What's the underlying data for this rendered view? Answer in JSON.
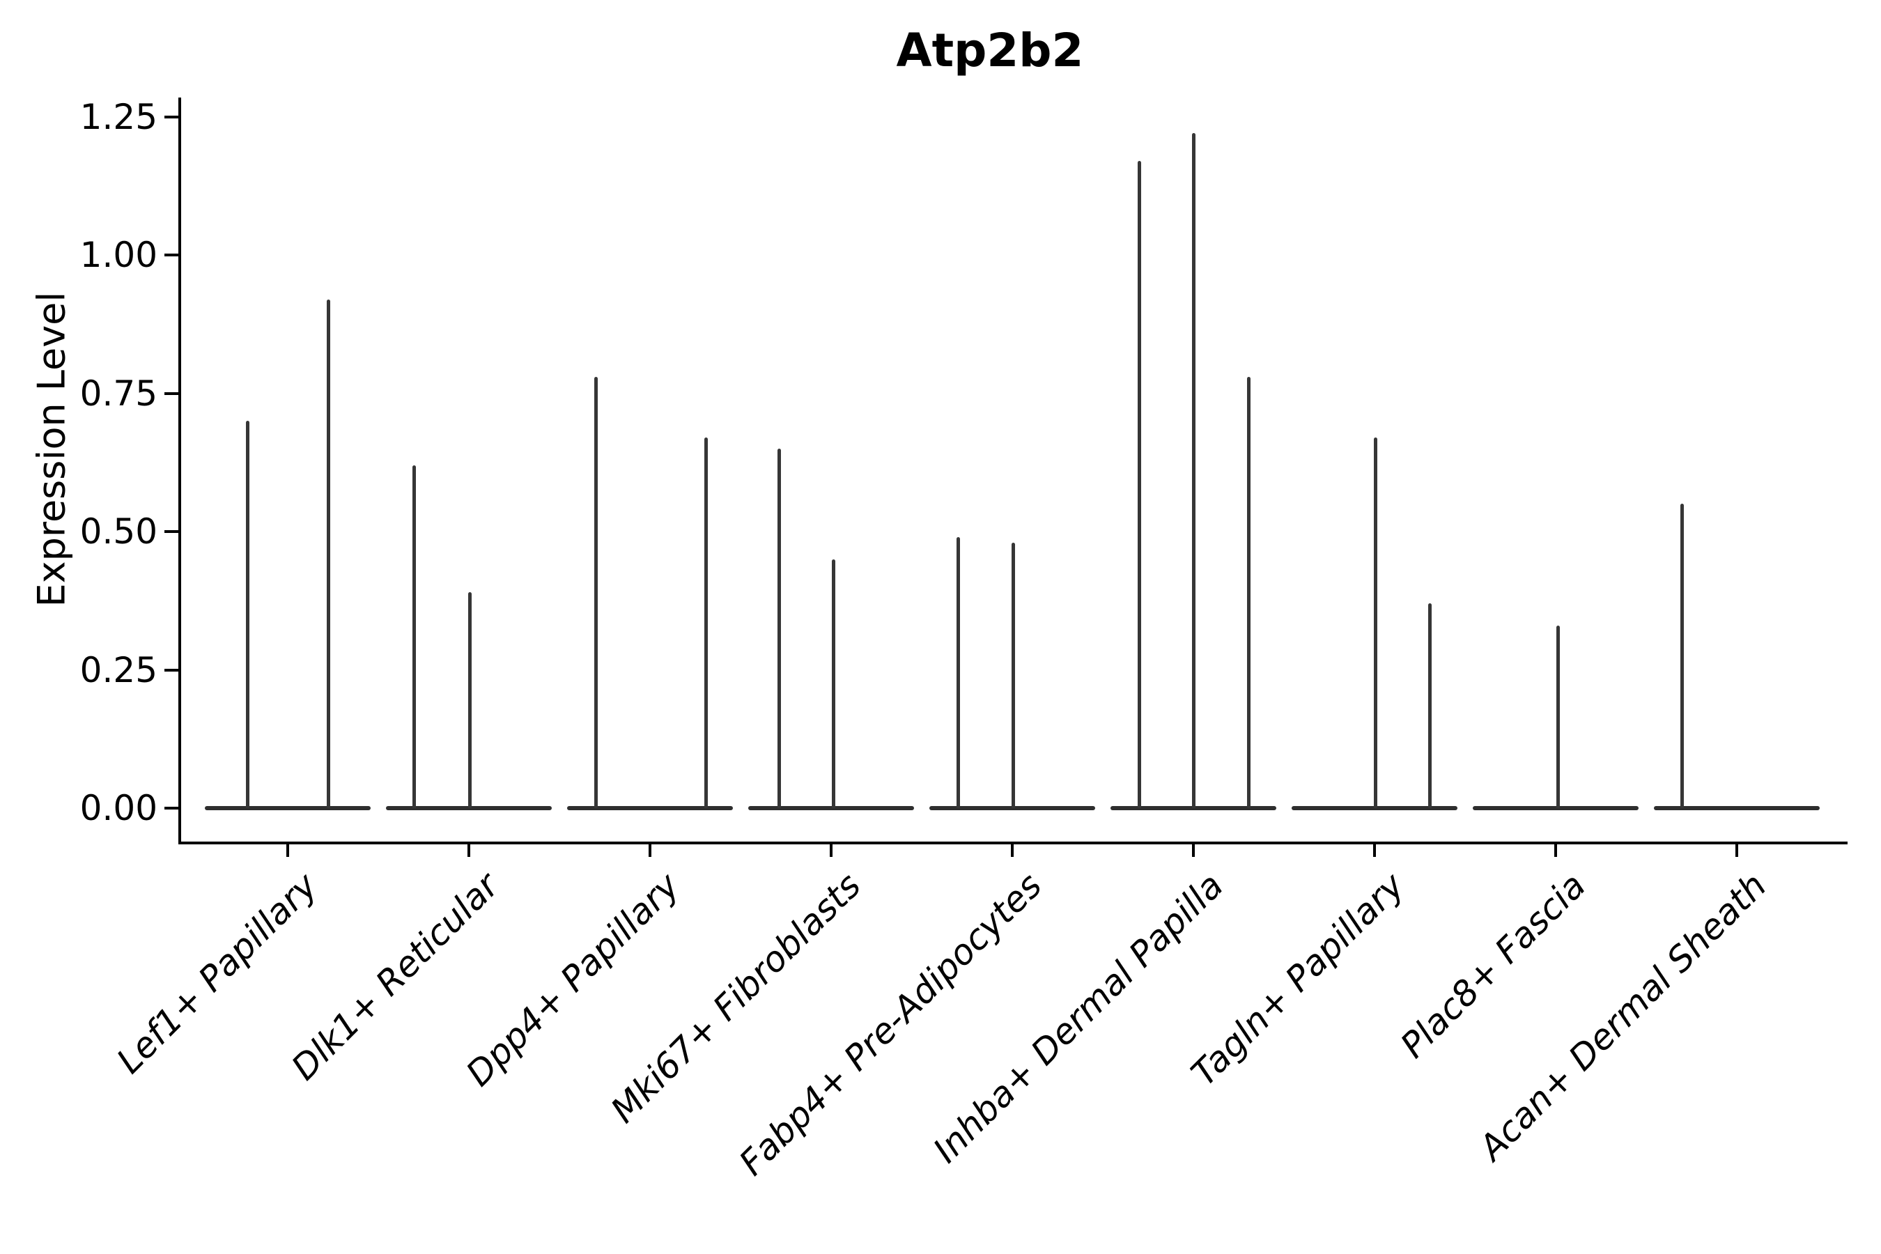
{
  "title": "Atp2b2",
  "y_axis": {
    "label": "Expression Level",
    "tick_labels": [
      "0.00",
      "0.25",
      "0.50",
      "0.75",
      "1.00",
      "1.25"
    ]
  },
  "chart_data": {
    "type": "violin",
    "title": "Atp2b2",
    "xlabel": "",
    "ylabel": "Expression Level",
    "yticks": [
      0.0,
      0.25,
      0.5,
      0.75,
      1.0,
      1.25
    ],
    "ylim": [
      -0.065,
      1.29
    ],
    "grid": false,
    "legend": "none",
    "categories": [
      "Lef1+ Papillary",
      "Dlk1+ Reticular",
      "Dpp4+ Papillary",
      "Mki67+ Fibroblasts",
      "Fabp4+ Pre-Adipocytes",
      "Inhba+ Dermal Papilla",
      "Tagln+ Papillary",
      "Plac8+ Fascia",
      "Acan+ Dermal Sheath"
    ],
    "groups": [
      {
        "category": "Lef1+ Papillary",
        "violins": [
          {
            "dx": -58,
            "max": 0.7
          },
          {
            "dx": 58,
            "max": 0.92
          }
        ]
      },
      {
        "category": "Dlk1+ Reticular",
        "violins": [
          {
            "dx": -79,
            "max": 0.62
          },
          {
            "dx": 1,
            "max": 0.39
          }
        ]
      },
      {
        "category": "Dpp4+ Papillary",
        "violins": [
          {
            "dx": -78,
            "max": 0.78
          },
          {
            "dx": 80,
            "max": 0.67
          }
        ]
      },
      {
        "category": "Mki67+ Fibroblasts",
        "violins": [
          {
            "dx": -75,
            "max": 0.65
          },
          {
            "dx": 3,
            "max": 0.45
          }
        ]
      },
      {
        "category": "Fabp4+ Pre-Adipocytes",
        "violins": [
          {
            "dx": -78,
            "max": 0.49
          },
          {
            "dx": 1,
            "max": 0.48
          }
        ]
      },
      {
        "category": "Inhba+ Dermal Papilla",
        "violins": [
          {
            "dx": -78,
            "max": 1.17
          },
          {
            "dx": 0,
            "max": 1.22
          },
          {
            "dx": 79,
            "max": 0.78
          }
        ]
      },
      {
        "category": "Tagln+ Papillary",
        "violins": [
          {
            "dx": 1,
            "max": 0.67
          },
          {
            "dx": 79,
            "max": 0.37
          }
        ]
      },
      {
        "category": "Plac8+ Fascia",
        "violins": [
          {
            "dx": 3,
            "max": 0.33
          }
        ]
      },
      {
        "category": "Acan+ Dermal Sheath",
        "violins": [
          {
            "dx": -79,
            "max": 0.55
          }
        ]
      }
    ],
    "colors": {
      "violin": "#363636",
      "baseline": "#2e2e2e",
      "axis": "#000000",
      "text": "#000000",
      "background": "#ffffff"
    }
  }
}
